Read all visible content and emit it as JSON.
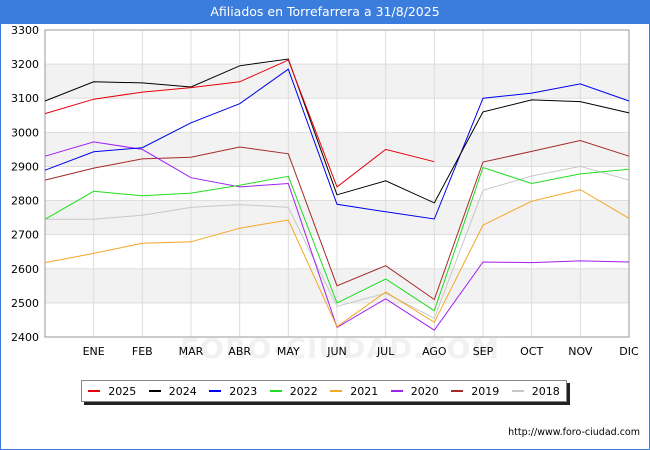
{
  "title": "Afiliados en Torrefarrera a 31/8/2025",
  "source": "http://www.foro-ciudad.com",
  "watermark": "FORO-CIUDAD.COM",
  "chart_data": {
    "type": "line",
    "title": "Afiliados en Torrefarrera a 31/8/2025",
    "categories": [
      "",
      "ENE",
      "FEB",
      "MAR",
      "ABR",
      "MAY",
      "JUN",
      "JUL",
      "AGO",
      "SEP",
      "OCT",
      "NOV",
      "DIC"
    ],
    "ylim": [
      2400,
      3300
    ],
    "yticks": [
      2400,
      2500,
      2600,
      2700,
      2800,
      2900,
      3000,
      3100,
      3200,
      3300
    ],
    "grid": true,
    "legend_position": "bottom",
    "series": [
      {
        "name": "2025",
        "color": "#e8000b",
        "values": [
          3055,
          3097,
          3118,
          3131,
          3148,
          3212,
          2840,
          2950,
          2914,
          null,
          null,
          null,
          null
        ]
      },
      {
        "name": "2024",
        "color": "#000000",
        "values": [
          3092,
          3148,
          3145,
          3133,
          3195,
          3215,
          2817,
          2858,
          2793,
          3060,
          3095,
          3090,
          3057
        ]
      },
      {
        "name": "2023",
        "color": "#0000ee",
        "values": [
          2889,
          2943,
          2955,
          3028,
          3084,
          3185,
          2789,
          2767,
          2746,
          3100,
          3115,
          3142,
          3092
        ]
      },
      {
        "name": "2022",
        "color": "#22dd22",
        "values": [
          2745,
          2827,
          2814,
          2822,
          2845,
          2871,
          2500,
          2570,
          2477,
          2897,
          2850,
          2878,
          2892
        ]
      },
      {
        "name": "2021",
        "color": "#f5a623",
        "values": [
          2618,
          2645,
          2675,
          2679,
          2719,
          2743,
          2430,
          2532,
          2443,
          2728,
          2798,
          2832,
          2748
        ]
      },
      {
        "name": "2020",
        "color": "#a020f0",
        "values": [
          2930,
          2972,
          2950,
          2867,
          2840,
          2850,
          2428,
          2512,
          2420,
          2620,
          2618,
          2623,
          2620
        ]
      },
      {
        "name": "2019",
        "color": "#a52a2a",
        "values": [
          2860,
          2895,
          2922,
          2927,
          2957,
          2937,
          2550,
          2609,
          2510,
          2913,
          2944,
          2976,
          2930
        ]
      },
      {
        "name": "2018",
        "color": "#c8c8c8",
        "values": [
          2745,
          2745,
          2757,
          2780,
          2788,
          2780,
          2490,
          2528,
          2455,
          2830,
          2872,
          2900,
          2860
        ]
      }
    ]
  }
}
